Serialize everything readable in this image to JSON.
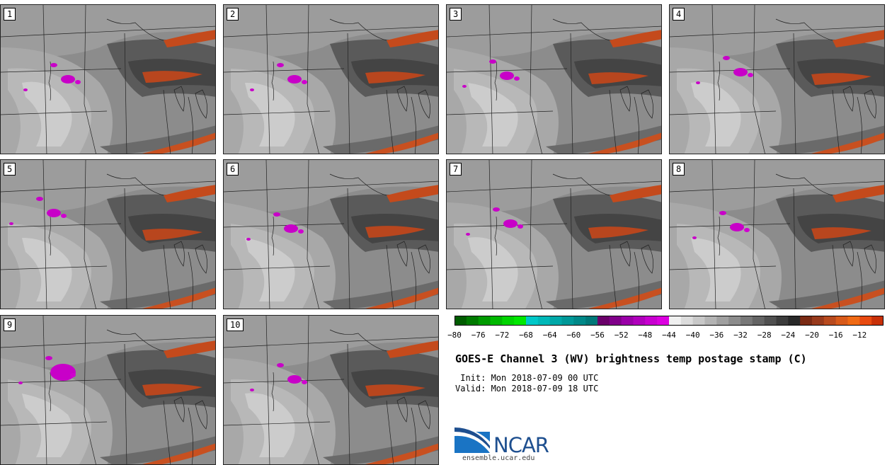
{
  "panels": [
    {
      "label": "1"
    },
    {
      "label": "2"
    },
    {
      "label": "3"
    },
    {
      "label": "4"
    },
    {
      "label": "5"
    },
    {
      "label": "6"
    },
    {
      "label": "7"
    },
    {
      "label": "8"
    },
    {
      "label": "9"
    },
    {
      "label": "10"
    }
  ],
  "colorbar": {
    "ticks": [
      "-80",
      "-76",
      "-72",
      "-68",
      "-64",
      "-60",
      "-56",
      "-52",
      "-48",
      "-44",
      "-40",
      "-36",
      "-32",
      "-28",
      "-24",
      "-20",
      "-16",
      "-12"
    ],
    "colors": [
      "#005c00",
      "#007a00",
      "#009a00",
      "#00b800",
      "#00d400",
      "#00e800",
      "#00c8c8",
      "#00b8b8",
      "#00a8a8",
      "#009898",
      "#008888",
      "#007878",
      "#6a006a",
      "#80008a",
      "#9a00a8",
      "#b000bc",
      "#c800d0",
      "#dc00e0",
      "#f0f0f0",
      "#dcdcdc",
      "#c8c8c8",
      "#b4b4b4",
      "#a0a0a0",
      "#8c8c8c",
      "#787878",
      "#646464",
      "#505050",
      "#3c3c3c",
      "#282828",
      "#7a2a14",
      "#983a1c",
      "#b84a1e",
      "#d85a1a",
      "#f06a14",
      "#e84a10",
      "#c83008"
    ]
  },
  "title": "GOES-E Channel 3 (WV) brightness temp postage stamp (C)",
  "init": " Init: Mon 2018-07-09 00 UTC",
  "valid": "Valid: Mon 2018-07-09 18 UTC",
  "logo_text": "NCAR",
  "url": "ensemble.ucar.edu",
  "accent_colors": {
    "magenta": "#c800c8",
    "orange": "#d05020",
    "dark": "#3c3c3c",
    "light": "#c8c8c8"
  }
}
